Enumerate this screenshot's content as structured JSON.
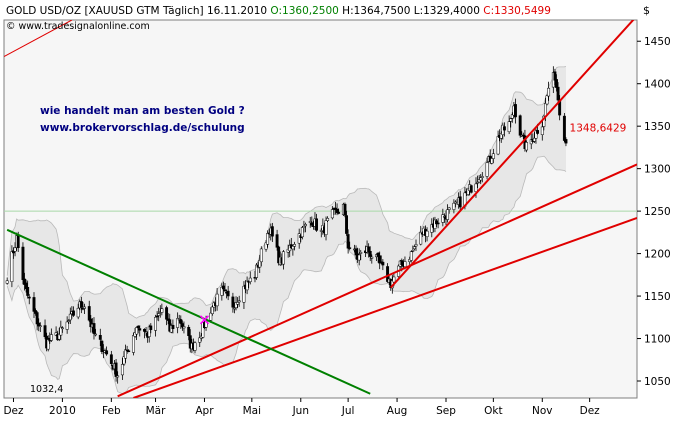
{
  "header": {
    "symbol": "GOLD USD/OZ [XAUUSD GTM",
    "period": "Täglich]",
    "date": "16.11.2010",
    "open": "O:1360,2500",
    "high": "H:1364,7500",
    "low": "L:1329,4000",
    "close": "C:1330,5499",
    "copyright": "© www.tradesignalonline.com"
  },
  "annotation": {
    "line1": "wie handelt man am besten Gold ?",
    "line2": "www.brokervorschlag.de/schulung"
  },
  "colors": {
    "background": "#ffffff",
    "plot_area": "#f6f6f6",
    "up_candle": "#ffffff",
    "down_candle": "#000000",
    "band": "#d9d9d9",
    "trendline_red": "#e00000",
    "trendline_green": "#008000",
    "annotation_text": "#000080",
    "open_text": "#008000",
    "close_text": "#e00000",
    "marker": "#ff00ff"
  },
  "chart_data": {
    "type": "candlestick",
    "title": "GOLD USD/OZ [XAUUSD GTM Täglich]",
    "y_axis_label": "$",
    "y_axis_position": "right",
    "ylim": [
      1030,
      1475
    ],
    "y_ticks": [
      1050,
      1100,
      1150,
      1200,
      1250,
      1300,
      1350,
      1400,
      1450
    ],
    "y_tick_labels": [
      "1050",
      "1100",
      "1150",
      "1200",
      "1250",
      "1300",
      "1350",
      "1400",
      "1450"
    ],
    "x_tick_labels": [
      "Dez",
      "2010",
      "Feb",
      "Mär",
      "Apr",
      "Mai",
      "Jun",
      "Jul",
      "Aug",
      "Sep",
      "Okt",
      "Nov",
      "Dez"
    ],
    "x_tick_dates": [
      "2009-12-01",
      "2010-01-01",
      "2010-02-01",
      "2010-03-01",
      "2010-04-01",
      "2010-05-01",
      "2010-06-01",
      "2010-07-01",
      "2010-08-01",
      "2010-09-01",
      "2010-10-01",
      "2010-11-01",
      "2010-12-01"
    ],
    "x_range": [
      "2009-11-25",
      "2010-12-31"
    ],
    "last_value_label": "1348,6429",
    "last_value": 1348.64,
    "low_label": "1032,4",
    "horizontal_line": 1250,
    "grid": false,
    "price_path": [
      [
        "2009-11-27",
        1175
      ],
      [
        "2009-12-03",
        1218
      ],
      [
        "2009-12-08",
        1160
      ],
      [
        "2009-12-15",
        1125
      ],
      [
        "2009-12-22",
        1095
      ],
      [
        "2009-12-30",
        1105
      ],
      [
        "2010-01-05",
        1120
      ],
      [
        "2010-01-11",
        1138
      ],
      [
        "2010-01-15",
        1140
      ],
      [
        "2010-01-21",
        1105
      ],
      [
        "2010-01-28",
        1085
      ],
      [
        "2010-02-05",
        1058
      ],
      [
        "2010-02-12",
        1090
      ],
      [
        "2010-02-17",
        1115
      ],
      [
        "2010-02-24",
        1105
      ],
      [
        "2010-03-01",
        1120
      ],
      [
        "2010-03-05",
        1135
      ],
      [
        "2010-03-10",
        1110
      ],
      [
        "2010-03-16",
        1125
      ],
      [
        "2010-03-19",
        1110
      ],
      [
        "2010-03-24",
        1090
      ],
      [
        "2010-03-31",
        1112
      ],
      [
        "2010-04-05",
        1135
      ],
      [
        "2010-04-12",
        1155
      ],
      [
        "2010-04-19",
        1140
      ],
      [
        "2010-04-26",
        1160
      ],
      [
        "2010-05-03",
        1175
      ],
      [
        "2010-05-07",
        1200
      ],
      [
        "2010-05-12",
        1230
      ],
      [
        "2010-05-19",
        1190
      ],
      [
        "2010-05-26",
        1210
      ],
      [
        "2010-06-01",
        1225
      ],
      [
        "2010-06-08",
        1240
      ],
      [
        "2010-06-14",
        1225
      ],
      [
        "2010-06-21",
        1245
      ],
      [
        "2010-06-28",
        1255
      ],
      [
        "2010-07-01",
        1210
      ],
      [
        "2010-07-07",
        1195
      ],
      [
        "2010-07-13",
        1205
      ],
      [
        "2010-07-20",
        1190
      ],
      [
        "2010-07-28",
        1165
      ],
      [
        "2010-08-03",
        1185
      ],
      [
        "2010-08-10",
        1200
      ],
      [
        "2010-08-17",
        1225
      ],
      [
        "2010-08-24",
        1235
      ],
      [
        "2010-08-31",
        1245
      ],
      [
        "2010-09-07",
        1255
      ],
      [
        "2010-09-14",
        1270
      ],
      [
        "2010-09-21",
        1290
      ],
      [
        "2010-09-28",
        1308
      ],
      [
        "2010-10-05",
        1340
      ],
      [
        "2010-10-12",
        1355
      ],
      [
        "2010-10-14",
        1375
      ],
      [
        "2010-10-19",
        1335
      ],
      [
        "2010-10-22",
        1325
      ],
      [
        "2010-10-27",
        1340
      ],
      [
        "2010-11-01",
        1355
      ],
      [
        "2010-11-05",
        1395
      ],
      [
        "2010-11-09",
        1410
      ],
      [
        "2010-11-12",
        1370
      ],
      [
        "2010-11-16",
        1330
      ]
    ],
    "trendlines": [
      {
        "color": "red",
        "from": {
          "date": "2010-02-05",
          "value": 1032
        },
        "to": {
          "date": "2010-12-31",
          "value": 1305
        }
      },
      {
        "color": "red",
        "from": {
          "date": "2010-02-15",
          "value": 1030
        },
        "to": {
          "date": "2010-12-31",
          "value": 1242
        }
      },
      {
        "color": "red",
        "from": {
          "date": "2010-07-28",
          "value": 1160
        },
        "to": {
          "date": "2010-12-31",
          "value": 1480
        }
      },
      {
        "color": "green",
        "from": {
          "date": "2009-11-27",
          "value": 1228
        },
        "to": {
          "date": "2010-07-15",
          "value": 1035
        }
      }
    ]
  }
}
